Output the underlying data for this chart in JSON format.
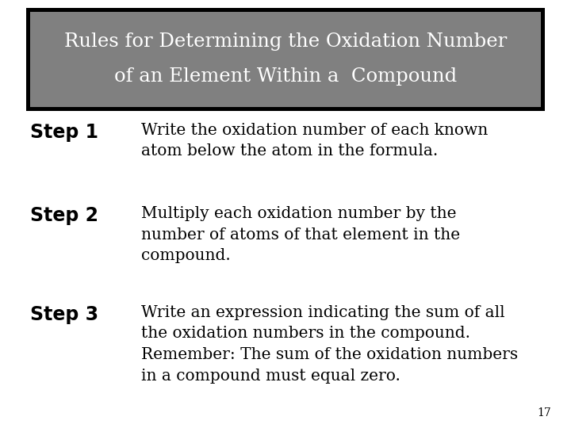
{
  "background_color": "#ffffff",
  "title_box_bg": "#808080",
  "title_box_border": "#000000",
  "title_text_color": "#ffffff",
  "title_line1": "Rules for Determining the Oxidation Number",
  "title_line2": "of an Element Within a  Compound",
  "step1_label": "Step 1",
  "step1_text": "Write the oxidation number of each known\natom below the atom in the formula.",
  "step2_label": "Step 2",
  "step2_text": "Multiply each oxidation number by the\nnumber of atoms of that element in the\ncompound.",
  "step3_label": "Step 3",
  "step3_text": "Write an expression indicating the sum of all\nthe oxidation numbers in the compound.\nRemember: The sum of the oxidation numbers\nin a compound must equal zero.",
  "page_number": "17",
  "label_fontsize": 17,
  "text_fontsize": 14.5,
  "title_fontsize": 17.5
}
